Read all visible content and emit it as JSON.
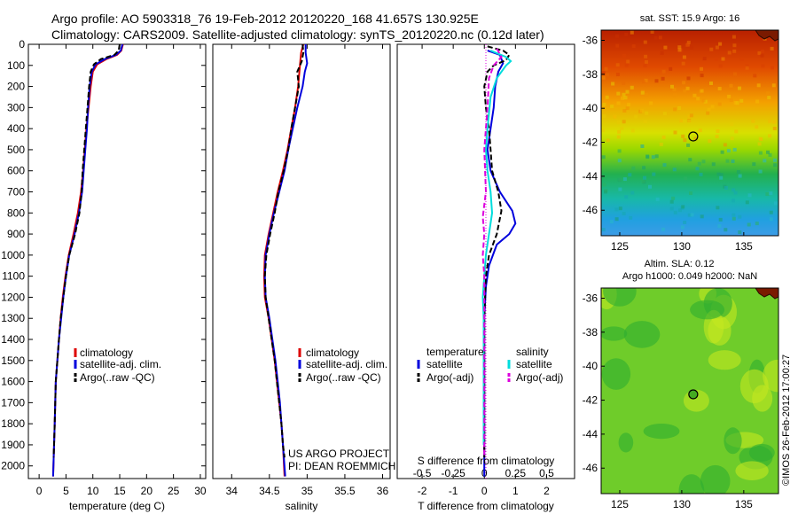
{
  "header": {
    "line1": "Argo profile: AO 5903318_76 19-Feb-2012 20120220_168 41.657S 130.925E",
    "line2": "Climatology: CARS2009. Satellite-adjusted climatology: synTS_20120220.nc (0.12d later)"
  },
  "footer": {
    "project": "US ARGO PROJECT",
    "pi": "PI: DEAN ROEMMICH",
    "credit": "©IMOS 26-Feb-2012 17:00:27"
  },
  "colors": {
    "climatology": "#dd0000",
    "satellite": "#0000dd",
    "argo": "#000000",
    "sal_satellite": "#00dddd",
    "sal_argo": "#dd00dd"
  },
  "legends": {
    "temperature_panel": [
      "climatology",
      "satellite-adj. clim.",
      "Argo(..raw -QC)"
    ],
    "salinity_panel": [
      "climatology",
      "satellite-adj. clim.",
      "Argo(..raw -QC)"
    ],
    "diff_panel": {
      "temperature_title": "temperature",
      "salinity_title": "salinity",
      "satellite": "satellite",
      "argo": "Argo(-adj)"
    }
  },
  "chart_data": [
    {
      "id": "temperature",
      "type": "line",
      "xlabel": "temperature (deg C)",
      "ylabel": "",
      "xlim": [
        -2,
        31
      ],
      "ylim": [
        2060,
        0
      ],
      "xticks": [
        0,
        5,
        10,
        15,
        20,
        25,
        30
      ],
      "yticks": [
        0,
        100,
        200,
        300,
        400,
        500,
        600,
        700,
        800,
        900,
        1000,
        1100,
        1200,
        1300,
        1400,
        1500,
        1600,
        1700,
        1800,
        1900,
        2000
      ],
      "series": [
        {
          "name": "climatology",
          "color": "#dd0000",
          "points": [
            [
              15.6,
              0
            ],
            [
              15.3,
              30
            ],
            [
              14.5,
              50
            ],
            [
              12.5,
              70
            ],
            [
              10.8,
              95
            ],
            [
              10.0,
              130
            ],
            [
              9.6,
              200
            ],
            [
              9.2,
              300
            ],
            [
              8.8,
              400
            ],
            [
              8.5,
              500
            ],
            [
              8.2,
              600
            ],
            [
              7.8,
              700
            ],
            [
              7.2,
              800
            ],
            [
              6.4,
              900
            ],
            [
              5.5,
              1000
            ],
            [
              4.9,
              1100
            ],
            [
              4.4,
              1200
            ],
            [
              4.0,
              1300
            ],
            [
              3.7,
              1400
            ],
            [
              3.4,
              1500
            ],
            [
              3.1,
              1600
            ],
            [
              2.9,
              1800
            ],
            [
              2.6,
              2050
            ]
          ]
        },
        {
          "name": "satellite-adj. clim.",
          "color": "#0000dd",
          "points": [
            [
              15.5,
              0
            ],
            [
              15.2,
              30
            ],
            [
              14.3,
              50
            ],
            [
              12.2,
              70
            ],
            [
              10.5,
              95
            ],
            [
              9.8,
              130
            ],
            [
              9.4,
              200
            ],
            [
              9.1,
              300
            ],
            [
              8.9,
              400
            ],
            [
              8.6,
              500
            ],
            [
              8.3,
              600
            ],
            [
              8.0,
              700
            ],
            [
              7.4,
              800
            ],
            [
              6.6,
              900
            ],
            [
              5.6,
              1000
            ],
            [
              5.0,
              1100
            ],
            [
              4.5,
              1200
            ],
            [
              4.1,
              1300
            ],
            [
              3.7,
              1400
            ],
            [
              3.4,
              1500
            ],
            [
              3.1,
              1600
            ],
            [
              2.9,
              1800
            ],
            [
              2.6,
              2050
            ]
          ]
        },
        {
          "name": "Argo(..raw -QC)",
          "color": "#000000",
          "dashed": true,
          "points": [
            [
              15.0,
              0
            ],
            [
              14.8,
              30
            ],
            [
              14.0,
              50
            ],
            [
              11.5,
              70
            ],
            [
              10.2,
              95
            ],
            [
              9.6,
              130
            ],
            [
              9.3,
              200
            ],
            [
              9.0,
              300
            ],
            [
              8.7,
              400
            ],
            [
              8.4,
              500
            ],
            [
              8.1,
              600
            ],
            [
              7.9,
              700
            ],
            [
              7.5,
              800
            ],
            [
              6.7,
              900
            ],
            [
              5.6,
              1000
            ],
            [
              5.0,
              1100
            ],
            [
              4.5,
              1200
            ],
            [
              4.0,
              1300
            ],
            [
              3.7,
              1400
            ],
            [
              3.4,
              1500
            ],
            [
              3.1,
              1600
            ],
            [
              2.9,
              1800
            ],
            [
              2.7,
              1960
            ]
          ]
        }
      ]
    },
    {
      "id": "salinity",
      "type": "line",
      "xlabel": "salinity",
      "ylabel": "",
      "xlim": [
        33.75,
        36.1
      ],
      "ylim": [
        2060,
        0
      ],
      "xticks": [
        34,
        34.5,
        35,
        35.5,
        36
      ],
      "series": [
        {
          "name": "climatology",
          "color": "#dd0000",
          "points": [
            [
              34.95,
              0
            ],
            [
              34.92,
              40
            ],
            [
              34.91,
              80
            ],
            [
              34.9,
              120
            ],
            [
              34.88,
              200
            ],
            [
              34.84,
              300
            ],
            [
              34.79,
              400
            ],
            [
              34.74,
              500
            ],
            [
              34.68,
              600
            ],
            [
              34.61,
              700
            ],
            [
              34.55,
              800
            ],
            [
              34.49,
              900
            ],
            [
              34.44,
              1000
            ],
            [
              34.43,
              1100
            ],
            [
              34.44,
              1200
            ],
            [
              34.49,
              1300
            ],
            [
              34.53,
              1400
            ],
            [
              34.57,
              1500
            ],
            [
              34.6,
              1600
            ],
            [
              34.63,
              1700
            ],
            [
              34.66,
              1800
            ],
            [
              34.68,
              1900
            ],
            [
              34.7,
              2050
            ]
          ]
        },
        {
          "name": "satellite-adj. clim.",
          "color": "#0000dd",
          "points": [
            [
              34.98,
              0
            ],
            [
              34.98,
              40
            ],
            [
              35.0,
              90
            ],
            [
              34.97,
              130
            ],
            [
              34.94,
              200
            ],
            [
              34.87,
              300
            ],
            [
              34.81,
              400
            ],
            [
              34.75,
              500
            ],
            [
              34.7,
              600
            ],
            [
              34.63,
              700
            ],
            [
              34.56,
              800
            ],
            [
              34.5,
              900
            ],
            [
              34.45,
              1000
            ],
            [
              34.44,
              1100
            ],
            [
              34.45,
              1200
            ],
            [
              34.5,
              1300
            ],
            [
              34.54,
              1400
            ],
            [
              34.58,
              1500
            ],
            [
              34.61,
              1600
            ],
            [
              34.64,
              1700
            ],
            [
              34.66,
              1800
            ],
            [
              34.68,
              1900
            ],
            [
              34.71,
              2050
            ]
          ]
        },
        {
          "name": "Argo(..raw -QC)",
          "color": "#000000",
          "dashed": true,
          "points": [
            [
              34.94,
              0
            ],
            [
              34.95,
              40
            ],
            [
              34.93,
              80
            ],
            [
              34.87,
              130
            ],
            [
              34.89,
              200
            ],
            [
              34.84,
              300
            ],
            [
              34.79,
              400
            ],
            [
              34.75,
              500
            ],
            [
              34.69,
              600
            ],
            [
              34.62,
              700
            ],
            [
              34.57,
              800
            ],
            [
              34.51,
              900
            ],
            [
              34.46,
              1000
            ],
            [
              34.44,
              1100
            ],
            [
              34.45,
              1200
            ],
            [
              34.49,
              1300
            ],
            [
              34.53,
              1400
            ],
            [
              34.57,
              1500
            ],
            [
              34.6,
              1600
            ],
            [
              34.63,
              1700
            ],
            [
              34.66,
              1800
            ],
            [
              34.68,
              1900
            ],
            [
              34.7,
              1960
            ]
          ]
        }
      ]
    },
    {
      "id": "difference",
      "type": "line",
      "xlabel": "T difference from climatology",
      "x2label": "S difference from climatology",
      "ylabel": "",
      "xlim": [
        -2.8,
        2.9
      ],
      "ylim": [
        2060,
        0
      ],
      "xticks": [
        -2,
        -1,
        0,
        1,
        2
      ],
      "x2ticks": [
        -0.5,
        -0.25,
        0,
        0.25,
        0.5
      ],
      "series": [
        {
          "name": "temperature satellite",
          "color": "#0000dd",
          "points": [
            [
              0.1,
              30
            ],
            [
              0.5,
              50
            ],
            [
              0.6,
              90
            ],
            [
              0.45,
              130
            ],
            [
              0.35,
              200
            ],
            [
              0.3,
              300
            ],
            [
              0.2,
              400
            ],
            [
              0.1,
              500
            ],
            [
              0.2,
              600
            ],
            [
              0.5,
              700
            ],
            [
              0.9,
              790
            ],
            [
              1.0,
              850
            ],
            [
              0.8,
              900
            ],
            [
              0.4,
              950
            ],
            [
              0.15,
              1050
            ],
            [
              0.05,
              1150
            ],
            [
              0.0,
              1300
            ],
            [
              0.0,
              1500
            ],
            [
              0.0,
              1700
            ],
            [
              0.0,
              2050
            ]
          ]
        },
        {
          "name": "temperature Argo(-adj)",
          "color": "#000000",
          "dashed": true,
          "points": [
            [
              0.1,
              10
            ],
            [
              0.6,
              30
            ],
            [
              0.8,
              50
            ],
            [
              0.7,
              75
            ],
            [
              0.3,
              100
            ],
            [
              0.1,
              130
            ],
            [
              0.0,
              200
            ],
            [
              0.05,
              300
            ],
            [
              0.15,
              400
            ],
            [
              0.2,
              500
            ],
            [
              0.25,
              600
            ],
            [
              0.45,
              700
            ],
            [
              0.55,
              790
            ],
            [
              0.4,
              900
            ],
            [
              0.15,
              1000
            ],
            [
              0.05,
              1100
            ],
            [
              0.0,
              1300
            ],
            [
              0.0,
              1500
            ],
            [
              0.0,
              1700
            ],
            [
              0.0,
              1960
            ]
          ]
        },
        {
          "name": "salinity satellite",
          "color": "#00dddd",
          "points": [
            [
              0.2,
              30
            ],
            [
              0.7,
              60
            ],
            [
              0.85,
              80
            ],
            [
              0.7,
              100
            ],
            [
              0.4,
              160
            ],
            [
              0.2,
              250
            ],
            [
              0.1,
              400
            ],
            [
              0.05,
              500
            ],
            [
              0.1,
              600
            ],
            [
              0.2,
              700
            ],
            [
              0.25,
              800
            ],
            [
              0.15,
              900
            ],
            [
              0.05,
              1000
            ],
            [
              0.0,
              1100
            ],
            [
              -0.05,
              1200
            ],
            [
              -0.02,
              1300
            ],
            [
              -0.02,
              1500
            ],
            [
              -0.02,
              1700
            ],
            [
              -0.02,
              1900
            ]
          ]
        },
        {
          "name": "salinity Argo(-adj)",
          "color": "#dd00dd",
          "dashed": true,
          "points": [
            [
              0.4,
              20
            ],
            [
              0.55,
              60
            ],
            [
              0.3,
              100
            ],
            [
              0.15,
              160
            ],
            [
              0.1,
              300
            ],
            [
              0.0,
              500
            ],
            [
              0.05,
              700
            ],
            [
              -0.05,
              820
            ],
            [
              0.0,
              900
            ],
            [
              -0.05,
              1000
            ],
            [
              0.0,
              1100
            ],
            [
              0.0,
              1300
            ],
            [
              0.0,
              1500
            ],
            [
              0.0,
              1700
            ],
            [
              0.0,
              1960
            ]
          ]
        }
      ]
    }
  ],
  "maps": [
    {
      "id": "sst-map",
      "title": "sat. SST: 15.9 Argo: 16",
      "xticks": [
        125,
        130,
        135
      ],
      "yticks": [
        -36,
        -38,
        -40,
        -42,
        -44,
        -46
      ],
      "xlim": [
        123.5,
        137.8
      ],
      "ylim": [
        -47.5,
        -35.4
      ],
      "marker": {
        "lon": 130.925,
        "lat": -41.657,
        "fill": "none"
      }
    },
    {
      "id": "sla-map",
      "title": "Altim. SLA: 0.12",
      "subtitle": "Argo h1000: 0.049 h2000: NaN",
      "xticks": [
        125,
        130,
        135
      ],
      "yticks": [
        -36,
        -38,
        -40,
        -42,
        -44,
        -46
      ],
      "xlim": [
        123.5,
        137.8
      ],
      "ylim": [
        -47.5,
        -35.4
      ],
      "marker": {
        "lon": 130.925,
        "lat": -41.657,
        "fill": "#44aa22"
      }
    }
  ]
}
